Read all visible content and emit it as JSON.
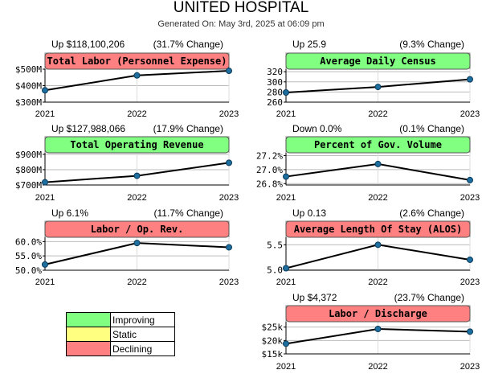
{
  "page": {
    "title": "UNITED HOSPITAL",
    "subtitle": "Generated On: May 3rd, 2025 at 06:09 pm"
  },
  "legend": [
    {
      "label": "Improving",
      "color": "#80ff80"
    },
    {
      "label": "Static",
      "color": "#ffff80"
    },
    {
      "label": "Declining",
      "color": "#ff8080"
    }
  ],
  "chart_data": [
    {
      "type": "line",
      "title": "Total Labor (Personnel Expense)",
      "summary": "Up $118,100,206",
      "change": "(31.7% Change)",
      "status": "declining",
      "x": [
        "2021",
        "2022",
        "2023"
      ],
      "values": [
        372,
        462,
        490
      ],
      "ylim": [
        300,
        500
      ],
      "yticks": [
        {
          "value": 300,
          "label": "$300M"
        },
        {
          "value": 400,
          "label": "$400M"
        },
        {
          "value": 500,
          "label": "$500M"
        }
      ]
    },
    {
      "type": "line",
      "title": "Average Daily Census",
      "summary": "Up 25.9",
      "change": "(9.3% Change)",
      "status": "improving",
      "x": [
        "2021",
        "2022",
        "2023"
      ],
      "values": [
        279,
        290,
        305
      ],
      "ylim": [
        260,
        325
      ],
      "yticks": [
        {
          "value": 260,
          "label": "260"
        },
        {
          "value": 280,
          "label": "280"
        },
        {
          "value": 300,
          "label": "300"
        },
        {
          "value": 320,
          "label": "320"
        }
      ]
    },
    {
      "type": "line",
      "title": "Total Operating Revenue",
      "summary": "Up $127,988,066",
      "change": "(17.9% Change)",
      "status": "improving",
      "x": [
        "2021",
        "2022",
        "2023"
      ],
      "values": [
        718,
        760,
        845
      ],
      "ylim": [
        700,
        910
      ],
      "yticks": [
        {
          "value": 700,
          "label": "$700M"
        },
        {
          "value": 800,
          "label": "$800M"
        },
        {
          "value": 900,
          "label": "$900M"
        }
      ]
    },
    {
      "type": "line",
      "title": "Percent of Gov. Volume",
      "summary": "Down 0.0%",
      "change": "(0.1% Change)",
      "status": "improving",
      "x": [
        "2021",
        "2022",
        "2023"
      ],
      "values": [
        26.9,
        27.08,
        26.85
      ],
      "ylim": [
        26.78,
        27.24
      ],
      "yticks": [
        {
          "value": 26.8,
          "label": "26.8%"
        },
        {
          "value": 27.0,
          "label": "27.0%"
        },
        {
          "value": 27.2,
          "label": "27.2%"
        }
      ]
    },
    {
      "type": "line",
      "title": "Labor / Op. Rev.",
      "summary": "Up 6.1%",
      "change": "(11.7% Change)",
      "status": "declining",
      "x": [
        "2021",
        "2022",
        "2023"
      ],
      "values": [
        52.0,
        59.5,
        58.0
      ],
      "ylim": [
        50.0,
        61.5
      ],
      "yticks": [
        {
          "value": 50.0,
          "label": "50.0%"
        },
        {
          "value": 55.0,
          "label": "55.0%"
        },
        {
          "value": 60.0,
          "label": "60.0%"
        }
      ]
    },
    {
      "type": "line",
      "title": "Average Length Of Stay (ALOS)",
      "summary": "Up 0.13",
      "change": "(2.6% Change)",
      "status": "declining",
      "x": [
        "2021",
        "2022",
        "2023"
      ],
      "values": [
        5.03,
        5.5,
        5.2
      ],
      "ylim": [
        4.99,
        5.65
      ],
      "yticks": [
        {
          "value": 5.0,
          "label": "5.0"
        },
        {
          "value": 5.5,
          "label": "5.5"
        }
      ]
    },
    {
      "type": "line",
      "title": "Labor / Discharge",
      "summary": "Up $4,372",
      "change": "(23.7% Change)",
      "status": "declining",
      "x": [
        "2021",
        "2022",
        "2023"
      ],
      "values": [
        18.8,
        24.3,
        23.3
      ],
      "ylim": [
        15,
        27
      ],
      "yticks": [
        {
          "value": 15,
          "label": "$15k"
        },
        {
          "value": 20,
          "label": "$20k"
        },
        {
          "value": 25,
          "label": "$25k"
        }
      ]
    }
  ]
}
